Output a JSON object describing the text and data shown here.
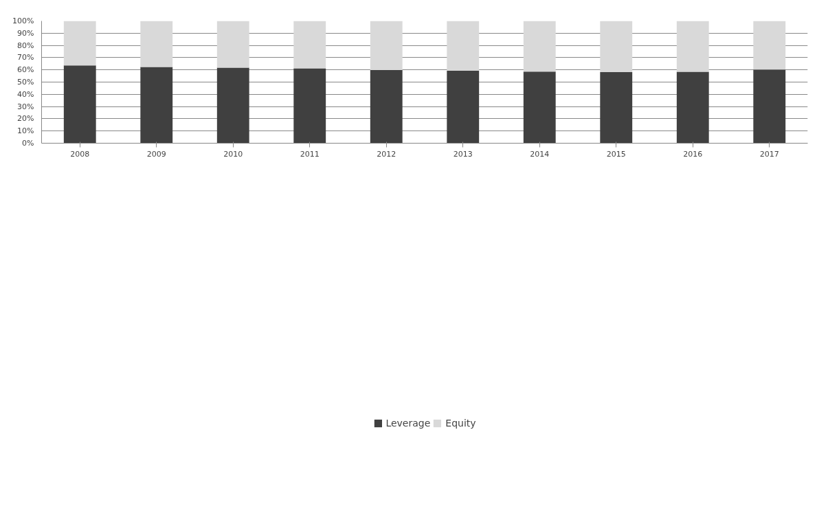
{
  "chart_data": {
    "type": "bar",
    "stacked": true,
    "categories": [
      "2008",
      "2009",
      "2010",
      "2011",
      "2012",
      "2013",
      "2014",
      "2015",
      "2016",
      "2017"
    ],
    "series": [
      {
        "name": "Leverage",
        "color": "#404040",
        "values": [
          63.6,
          62.3,
          61.8,
          61.2,
          59.9,
          59.2,
          58.6,
          58.1,
          58.4,
          60.2
        ]
      },
      {
        "name": "Equity",
        "color": "#d9d9d9",
        "values": [
          36.4,
          37.7,
          38.2,
          38.8,
          40.1,
          40.8,
          41.4,
          41.9,
          41.6,
          39.8
        ]
      }
    ],
    "ylim": [
      0,
      100
    ],
    "yticks": [
      {
        "value": 0,
        "label": "0%"
      },
      {
        "value": 10,
        "label": "10%"
      },
      {
        "value": 20,
        "label": "20%"
      },
      {
        "value": 30,
        "label": "30%"
      },
      {
        "value": 40,
        "label": "40%"
      },
      {
        "value": 50,
        "label": "50%"
      },
      {
        "value": 60,
        "label": "60%"
      },
      {
        "value": 70,
        "label": "70%"
      },
      {
        "value": 80,
        "label": "80%"
      },
      {
        "value": 90,
        "label": "90%"
      },
      {
        "value": 100,
        "label": "100%"
      }
    ],
    "grid": "y",
    "legend": "bottom"
  }
}
